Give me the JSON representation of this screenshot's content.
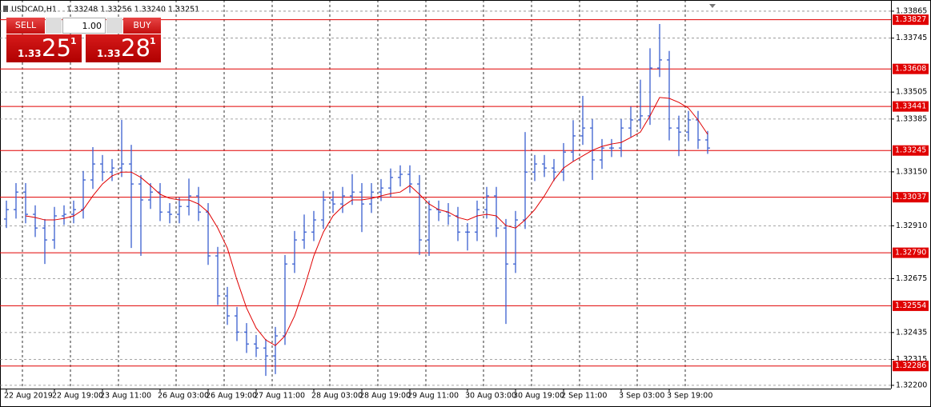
{
  "header": {
    "symbol": "USDCAD,H1",
    "quote": "1.33248 1.33256 1.33240 1.33251"
  },
  "trade_panel": {
    "sell": "SELL",
    "buy": "BUY",
    "lot": "1.00",
    "sell_price": {
      "big": "1.33",
      "pips": "25",
      "point": "1"
    },
    "buy_price": {
      "big": "1.33",
      "pips": "28",
      "point": "1"
    }
  },
  "chart_data": {
    "type": "ohlc",
    "color": "#3a5fd0",
    "grid": true,
    "categories": [
      "22 Aug 2019",
      null,
      null,
      null,
      null,
      "22 Aug 19:00",
      null,
      null,
      null,
      null,
      "23 Aug 11:00",
      null,
      null,
      null,
      null,
      null,
      "26 Aug 03:00",
      null,
      null,
      null,
      null,
      "26 Aug 19:00",
      null,
      null,
      null,
      null,
      "27 Aug 11:00",
      null,
      null,
      null,
      null,
      null,
      "28 Aug 03:00",
      null,
      null,
      null,
      null,
      "28 Aug 19:00",
      null,
      null,
      null,
      null,
      "29 Aug 11:00",
      null,
      null,
      null,
      null,
      null,
      "30 Aug 03:00",
      null,
      null,
      null,
      null,
      "30 Aug 19:00",
      null,
      null,
      null,
      null,
      "2 Sep 11:00",
      null,
      null,
      null,
      null,
      null,
      "3 Sep 03:00",
      null,
      null,
      null,
      null,
      "3 Sep 19:00",
      null,
      null,
      null,
      null
    ],
    "open": [
      1.3294,
      1.32982,
      1.3306,
      1.32961,
      1.329,
      1.32847,
      1.32954,
      1.32961,
      1.32982,
      1.33114,
      1.33185,
      1.33149,
      1.33167,
      1.33185,
      1.33096,
      1.33025,
      1.3306,
      1.32971,
      1.32961,
      1.32996,
      1.33043,
      1.32971,
      1.32776,
      1.32598,
      1.32509,
      1.32437,
      1.32384,
      1.32366,
      1.32331,
      1.3242,
      1.3274,
      1.32847,
      1.32882,
      1.32936,
      1.33025,
      1.33007,
      1.33043,
      1.3306,
      1.33007,
      1.3306,
      1.33078,
      1.33125,
      1.33139,
      1.33096,
      1.32847,
      1.32982,
      1.32971,
      1.32954,
      1.32882,
      1.32882,
      1.32982,
      1.33043,
      1.329,
      1.3274,
      1.32936,
      1.33149,
      1.33185,
      1.33167,
      1.33149,
      1.33238,
      1.3331,
      1.33345,
      1.33203,
      1.33256,
      1.33256,
      1.33345,
      1.33381,
      1.33399,
      1.33612,
      1.33648,
      1.33345,
      1.33327,
      1.33381,
      1.33292
    ],
    "high": [
      1.33022,
      1.331,
      1.331,
      1.33001,
      1.3294,
      1.32994,
      1.33001,
      1.33022,
      1.33154,
      1.3326,
      1.33225,
      1.33207,
      1.33381,
      1.3327,
      1.33136,
      1.331,
      1.331,
      1.33011,
      1.33036,
      1.3312,
      1.33083,
      1.33011,
      1.32816,
      1.32638,
      1.32549,
      1.32477,
      1.32424,
      1.32406,
      1.3246,
      1.3278,
      1.32887,
      1.3296,
      1.32976,
      1.33065,
      1.33065,
      1.33083,
      1.3314,
      1.331,
      1.331,
      1.33118,
      1.33165,
      1.33179,
      1.33179,
      1.33136,
      1.33022,
      1.33022,
      1.33011,
      1.32994,
      1.32922,
      1.33022,
      1.33083,
      1.33083,
      1.3294,
      1.32976,
      1.33327,
      1.33225,
      1.33225,
      1.33207,
      1.33278,
      1.3338,
      1.33488,
      1.33385,
      1.33296,
      1.33296,
      1.33385,
      1.3344,
      1.3356,
      1.337,
      1.33808,
      1.33688,
      1.334,
      1.33421,
      1.33421,
      1.33332
    ],
    "low": [
      1.329,
      1.32942,
      1.32921,
      1.3286,
      1.3274,
      1.32807,
      1.32914,
      1.32921,
      1.32942,
      1.33074,
      1.33109,
      1.33109,
      1.33127,
      1.32811,
      1.32776,
      1.32985,
      1.32931,
      1.32921,
      1.32921,
      1.32956,
      1.32931,
      1.32736,
      1.32558,
      1.32469,
      1.32397,
      1.32344,
      1.32326,
      1.32242,
      1.3225,
      1.3238,
      1.327,
      1.32807,
      1.32842,
      1.32896,
      1.32967,
      1.32967,
      1.33003,
      1.32882,
      1.32967,
      1.3302,
      1.33038,
      1.33085,
      1.33056,
      1.3278,
      1.32776,
      1.32931,
      1.32914,
      1.32842,
      1.328,
      1.32842,
      1.32942,
      1.3286,
      1.32473,
      1.327,
      1.32896,
      1.33109,
      1.33127,
      1.33109,
      1.33109,
      1.33198,
      1.3327,
      1.33114,
      1.33163,
      1.33216,
      1.33216,
      1.33305,
      1.33341,
      1.33359,
      1.33572,
      1.3329,
      1.3322,
      1.33287,
      1.33252,
      1.3323
    ],
    "close": [
      1.32982,
      1.3306,
      1.32961,
      1.329,
      1.32847,
      1.32954,
      1.32961,
      1.32982,
      1.33114,
      1.33185,
      1.33149,
      1.33167,
      1.33185,
      1.33096,
      1.33025,
      1.3306,
      1.32971,
      1.32961,
      1.32996,
      1.33043,
      1.32971,
      1.32776,
      1.32598,
      1.32509,
      1.32437,
      1.32384,
      1.32366,
      1.32331,
      1.3242,
      1.3274,
      1.32847,
      1.32882,
      1.32936,
      1.33025,
      1.33007,
      1.33043,
      1.3306,
      1.33007,
      1.3306,
      1.33078,
      1.33125,
      1.33139,
      1.33096,
      1.32847,
      1.32982,
      1.32971,
      1.32954,
      1.32882,
      1.32882,
      1.32982,
      1.33043,
      1.329,
      1.3274,
      1.32936,
      1.33149,
      1.33185,
      1.33167,
      1.33149,
      1.33238,
      1.3331,
      1.33345,
      1.33203,
      1.33256,
      1.33256,
      1.33345,
      1.33381,
      1.33399,
      1.33612,
      1.33648,
      1.33345,
      1.33327,
      1.33381,
      1.33292,
      1.33256
    ],
    "ma": [
      null,
      null,
      1.32954,
      1.32947,
      1.32936,
      1.32936,
      1.32943,
      1.32954,
      1.32982,
      1.33043,
      1.33096,
      1.33132,
      1.33149,
      1.33149,
      1.33125,
      1.33089,
      1.3305,
      1.33032,
      1.33025,
      1.33025,
      1.33007,
      1.32971,
      1.329,
      1.32811,
      1.32669,
      1.32544,
      1.32455,
      1.32402,
      1.32377,
      1.3242,
      1.32509,
      1.32633,
      1.32776,
      1.32882,
      1.32954,
      1.32996,
      1.33025,
      1.33025,
      1.33032,
      1.33043,
      1.33053,
      1.3306,
      1.33089,
      1.3305,
      1.33007,
      1.32982,
      1.32971,
      1.32947,
      1.32936,
      1.32954,
      1.32961,
      1.32954,
      1.32911,
      1.329,
      1.32936,
      1.32982,
      1.33043,
      1.33114,
      1.33167,
      1.33196,
      1.33221,
      1.33246,
      1.33263,
      1.33274,
      1.33281,
      1.33303,
      1.33327,
      1.33399,
      1.33481,
      1.33477,
      1.33459,
      1.33434,
      1.33381,
      1.33317
    ],
    "ma_color": "#e00000",
    "ylim": [
      1.32189,
      1.33904
    ],
    "yticks": [
      1.33865,
      1.33745,
      1.33505,
      1.33385,
      {
        "value": 1.3315,
        "label": "1.33150"
      },
      {
        "value": 1.3291,
        "label": "1.32910"
      },
      1.32675,
      1.32435,
      1.32315,
      {
        "value": 1.322,
        "label": "1.32200"
      }
    ],
    "levels": [
      1.33827,
      1.33608,
      1.33441,
      1.33245,
      1.33037,
      {
        "value": 1.3279,
        "label": "1.32790"
      },
      1.32554,
      1.32286
    ],
    "level_color": "#e00000"
  }
}
